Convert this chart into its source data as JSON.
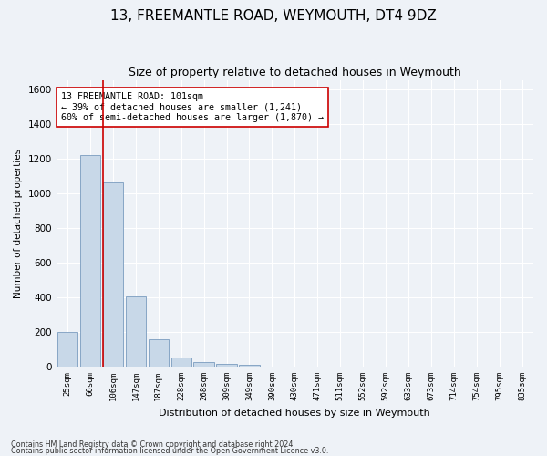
{
  "title": "13, FREEMANTLE ROAD, WEYMOUTH, DT4 9DZ",
  "subtitle": "Size of property relative to detached houses in Weymouth",
  "xlabel": "Distribution of detached houses by size in Weymouth",
  "ylabel": "Number of detached properties",
  "categories": [
    "25sqm",
    "66sqm",
    "106sqm",
    "147sqm",
    "187sqm",
    "228sqm",
    "268sqm",
    "309sqm",
    "349sqm",
    "390sqm",
    "430sqm",
    "471sqm",
    "511sqm",
    "552sqm",
    "592sqm",
    "633sqm",
    "673sqm",
    "714sqm",
    "754sqm",
    "795sqm",
    "835sqm"
  ],
  "values": [
    200,
    1220,
    1060,
    405,
    160,
    55,
    25,
    15,
    10,
    0,
    0,
    0,
    0,
    0,
    0,
    0,
    0,
    0,
    0,
    0,
    0
  ],
  "bar_color": "#c8d8e8",
  "bar_edge_color": "#7a9cbf",
  "property_line_color": "#cc0000",
  "annotation_text": "13 FREEMANTLE ROAD: 101sqm\n← 39% of detached houses are smaller (1,241)\n60% of semi-detached houses are larger (1,870) →",
  "annotation_box_color": "#ffffff",
  "annotation_box_edge": "#cc0000",
  "ylim": [
    0,
    1650
  ],
  "yticks": [
    0,
    200,
    400,
    600,
    800,
    1000,
    1200,
    1400,
    1600
  ],
  "footer_line1": "Contains HM Land Registry data © Crown copyright and database right 2024.",
  "footer_line2": "Contains public sector information licensed under the Open Government Licence v3.0.",
  "background_color": "#eef2f7",
  "plot_background": "#eef2f7",
  "grid_color": "#ffffff",
  "title_fontsize": 11,
  "subtitle_fontsize": 9
}
